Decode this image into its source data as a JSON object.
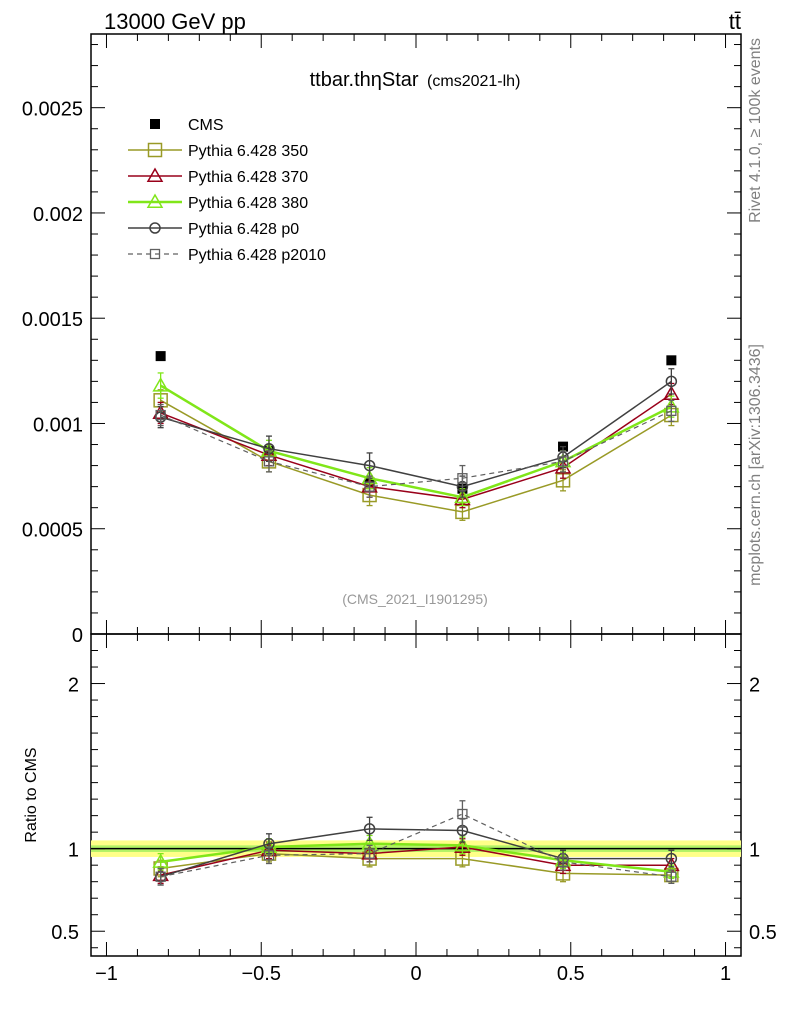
{
  "header": {
    "left": "13000 GeV pp",
    "right": "tt̄"
  },
  "side_text": {
    "rivet": "Rivet 4.1.0, ≥ 100k events",
    "mcplots": "mcplots.cern.ch [arXiv:1306.3436]"
  },
  "colors": {
    "CMS": "#000000",
    "Pythia 6.428 350": "#999a26",
    "Pythia 6.428 370": "#99001a",
    "Pythia 6.428 380": "#80e619",
    "Pythia 6.428 p0": "#404040",
    "Pythia 6.428 p2010": "#606060",
    "band_outer": "#ffff88",
    "band_inner": "#b3f266"
  },
  "chart_data": [
    {
      "id": "main",
      "type": "line",
      "title_main": "ttbar.thηStar",
      "title_sub": "(cms2021-lh)",
      "watermark": "(CMS_2021_I1901295)",
      "xlim": [
        -1.05,
        1.05
      ],
      "ylim": [
        0,
        0.00285
      ],
      "yticks": [
        0,
        0.0005,
        0.001,
        0.0015,
        0.002,
        0.0025
      ],
      "ytick_labels": [
        "0",
        "0.0005",
        "0.001",
        "0.0015",
        "0.002",
        "0.0025"
      ],
      "x": [
        -0.825,
        -0.475,
        -0.15,
        0.15,
        0.475,
        0.825
      ],
      "series": [
        {
          "name": "CMS",
          "style": "data",
          "values": [
            0.00132,
            0.00087,
            0.00072,
            0.00069,
            0.00089,
            0.0013
          ],
          "errors": [
            0,
            0,
            0,
            0,
            0,
            0
          ]
        },
        {
          "name": "Pythia 6.428 350",
          "style": "square",
          "values": [
            0.00111,
            0.00082,
            0.00066,
            0.00058,
            0.00073,
            0.00104
          ],
          "errors": [
            5e-05,
            5e-05,
            5e-05,
            4e-05,
            5e-05,
            5e-05
          ]
        },
        {
          "name": "Pythia 6.428 370",
          "style": "triangle",
          "values": [
            0.00105,
            0.00085,
            0.0007,
            0.00064,
            0.00079,
            0.00114
          ],
          "errors": [
            5e-05,
            5e-05,
            5e-05,
            4e-05,
            5e-05,
            5e-05
          ]
        },
        {
          "name": "Pythia 6.428 380",
          "style": "triangle-bold",
          "values": [
            0.00118,
            0.00087,
            0.00074,
            0.00065,
            0.00082,
            0.00108
          ],
          "errors": [
            6e-05,
            5e-05,
            5e-05,
            4e-05,
            5e-05,
            5e-05
          ]
        },
        {
          "name": "Pythia 6.428 p0",
          "style": "circle",
          "values": [
            0.00103,
            0.00088,
            0.0008,
            0.0007,
            0.00084,
            0.0012
          ],
          "errors": [
            5e-05,
            6e-05,
            6e-05,
            5e-05,
            5e-05,
            6e-05
          ]
        },
        {
          "name": "Pythia 6.428 p2010",
          "style": "dashed-square",
          "values": [
            0.00104,
            0.00082,
            0.0007,
            0.00074,
            0.00082,
            0.00106
          ],
          "errors": [
            5e-05,
            5e-05,
            5e-05,
            6e-05,
            5e-05,
            5e-05
          ]
        }
      ]
    },
    {
      "id": "ratio",
      "type": "line",
      "ylabel": "Ratio to CMS",
      "xlim": [
        -1.05,
        1.05
      ],
      "ylim": [
        0.35,
        2.3
      ],
      "yticks": [
        0.5,
        1,
        2
      ],
      "ytick_labels": [
        "0.5",
        "1",
        "2"
      ],
      "xticks": [
        -1,
        -0.5,
        0,
        0.5,
        1
      ],
      "xtick_labels": [
        "−1",
        "−0.5",
        "0",
        "0.5",
        "1"
      ],
      "band": {
        "outer": [
          0.95,
          1.05
        ],
        "inner": [
          0.98,
          1.02
        ]
      },
      "x": [
        -0.825,
        -0.475,
        -0.15,
        0.15,
        0.475,
        0.825
      ],
      "series": [
        {
          "name": "Pythia 6.428 350",
          "style": "square",
          "values": [
            0.88,
            0.97,
            0.94,
            0.94,
            0.85,
            0.84
          ],
          "errors": [
            0.05,
            0.05,
            0.05,
            0.05,
            0.05,
            0.04
          ]
        },
        {
          "name": "Pythia 6.428 370",
          "style": "triangle",
          "values": [
            0.84,
            0.99,
            0.97,
            1.01,
            0.9,
            0.9
          ],
          "errors": [
            0.05,
            0.05,
            0.05,
            0.05,
            0.05,
            0.04
          ]
        },
        {
          "name": "Pythia 6.428 380",
          "style": "triangle-bold",
          "values": [
            0.92,
            1.01,
            1.03,
            1.02,
            0.93,
            0.86
          ],
          "errors": [
            0.05,
            0.05,
            0.05,
            0.05,
            0.05,
            0.04
          ]
        },
        {
          "name": "Pythia 6.428 p0",
          "style": "circle",
          "values": [
            0.83,
            1.03,
            1.12,
            1.11,
            0.94,
            0.94
          ],
          "errors": [
            0.05,
            0.06,
            0.07,
            0.07,
            0.05,
            0.05
          ]
        },
        {
          "name": "Pythia 6.428 p2010",
          "style": "dashed-square",
          "values": [
            0.83,
            0.96,
            0.97,
            1.21,
            0.92,
            0.83
          ],
          "errors": [
            0.05,
            0.05,
            0.05,
            0.08,
            0.05,
            0.04
          ]
        }
      ]
    }
  ]
}
